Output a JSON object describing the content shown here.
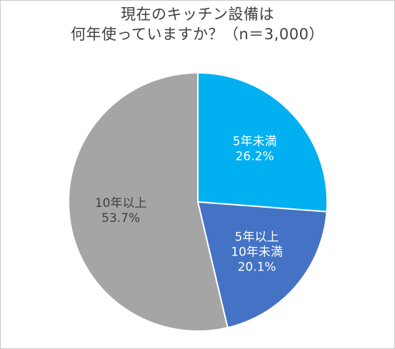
{
  "chart_data": {
    "type": "pie",
    "title_lines": [
      "現在のキッチン設備は",
      "何年使っていますか？（n＝3,000）"
    ],
    "slices": [
      {
        "label_lines": [
          "5年未満"
        ],
        "value": 26.2,
        "value_text": "26.2%",
        "color": "#00b0f0",
        "label_color": "#ffffff"
      },
      {
        "label_lines": [
          "5年以上",
          "10年未満"
        ],
        "value": 20.1,
        "value_text": "20.1%",
        "color": "#4472c4",
        "label_color": "#ffffff"
      },
      {
        "label_lines": [
          "10年以上"
        ],
        "value": 53.7,
        "value_text": "53.7%",
        "color": "#a5a5a5",
        "label_color": "#404040"
      }
    ],
    "start_angle_deg": 0,
    "direction": "clockwise",
    "slice_border_color": "#ffffff"
  }
}
